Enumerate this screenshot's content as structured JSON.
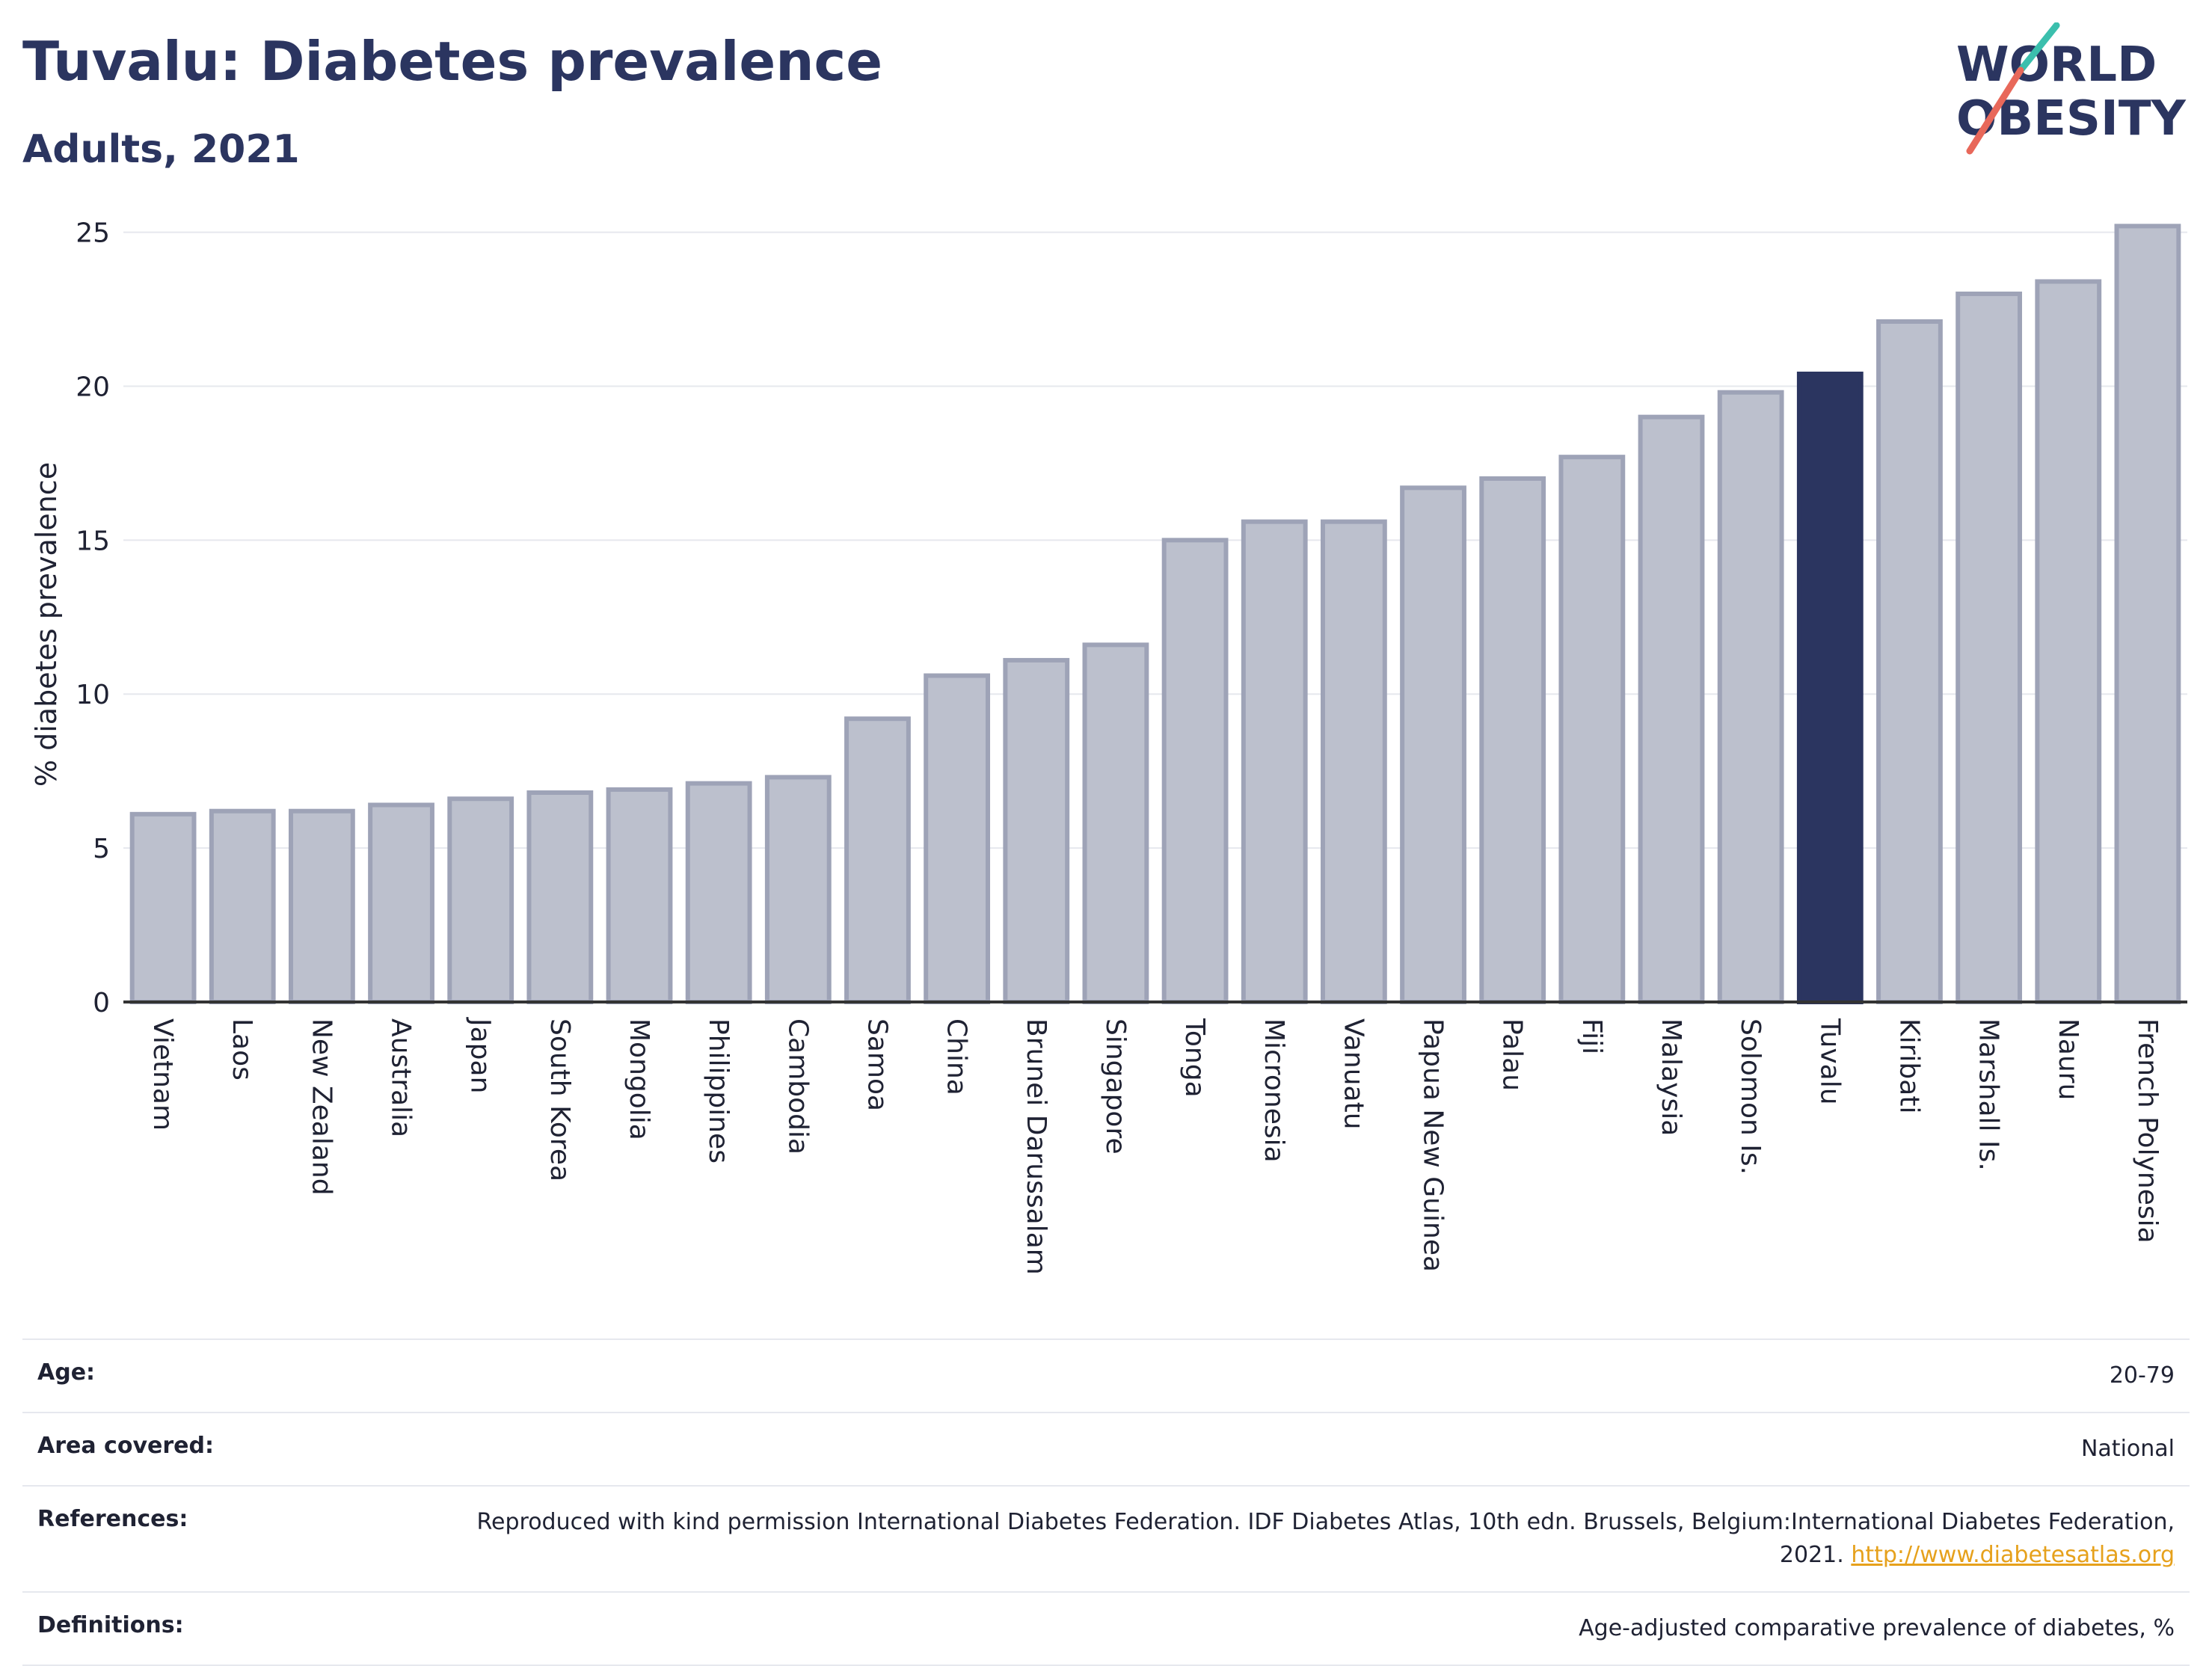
{
  "header": {
    "title": "Tuvalu: Diabetes prevalence",
    "subtitle": "Adults, 2021",
    "logo_line1": "WORLD",
    "logo_line2": "OBESITY"
  },
  "chart_data": {
    "type": "bar",
    "ylabel": "% diabetes prevalence",
    "ylim": [
      0,
      25.5
    ],
    "yticks": [
      0,
      5,
      10,
      15,
      20,
      25
    ],
    "highlight": "Tuvalu",
    "categories": [
      "Vietnam",
      "Laos",
      "New Zealand",
      "Australia",
      "Japan",
      "South Korea",
      "Mongolia",
      "Philippines",
      "Cambodia",
      "Samoa",
      "China",
      "Brunei Darussalam",
      "Singapore",
      "Tonga",
      "Micronesia",
      "Vanuatu",
      "Papua New Guinea",
      "Palau",
      "Fiji",
      "Malaysia",
      "Solomon Is.",
      "Tuvalu",
      "Kiribati",
      "Marshall Is.",
      "Nauru",
      "French Polynesia"
    ],
    "values": [
      6.1,
      6.2,
      6.2,
      6.4,
      6.6,
      6.8,
      6.9,
      7.1,
      7.3,
      9.2,
      10.6,
      11.1,
      11.6,
      15.0,
      15.6,
      15.6,
      16.7,
      17.0,
      17.7,
      19.0,
      19.8,
      20.4,
      22.1,
      23.0,
      23.4,
      25.2
    ],
    "colors": {
      "bar": "#bcc0cd",
      "bar_border": "#9ea3b7",
      "highlight": "#2b3560",
      "grid": "#e6e8ee",
      "axis": "#333333"
    }
  },
  "info": {
    "age_label": "Age:",
    "age_value": "20-79",
    "area_label": "Area covered:",
    "area_value": "National",
    "references_label": "References:",
    "references_value": "Reproduced with kind permission International Diabetes Federation.  IDF Diabetes Atlas, 10th edn. Brussels, Belgium:International Diabetes Federation, 2021.",
    "references_link": "http://www.diabetesatlas.org",
    "definitions_label": "Definitions:",
    "definitions_value": "Age-adjusted comparative prevalence of diabetes, %"
  }
}
